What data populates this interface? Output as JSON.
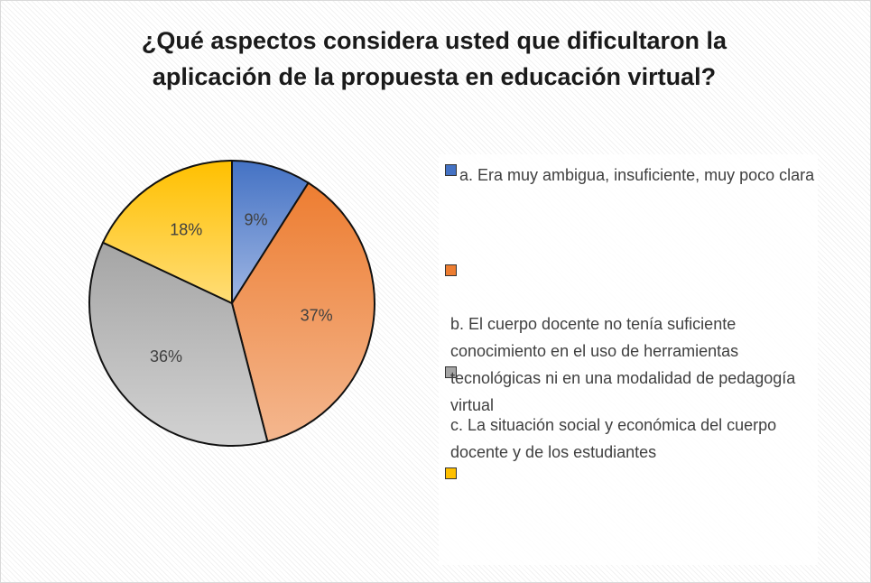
{
  "chart_data": {
    "type": "pie",
    "title": "¿Qué aspectos considera usted que dificultaron la aplicación de la propuesta en educación virtual?",
    "categories": [
      "a.      Era muy ambigua, insuficiente, muy poco clara",
      null,
      "b.      El cuerpo docente no tenía suficiente conocimiento en el uso de herramientas tecnológicas ni en una modalidad de pedagogía virtual",
      "c.      La situación social y económica del cuerpo docente y de los estudiantes"
    ],
    "values": [
      9,
      37,
      36,
      18
    ],
    "value_labels": [
      "9%",
      "37%",
      "36%",
      "18%"
    ],
    "colors": [
      "#4472c4",
      "#ed7d31",
      "#a5a5a5",
      "#ffc000"
    ],
    "legend": "right"
  }
}
